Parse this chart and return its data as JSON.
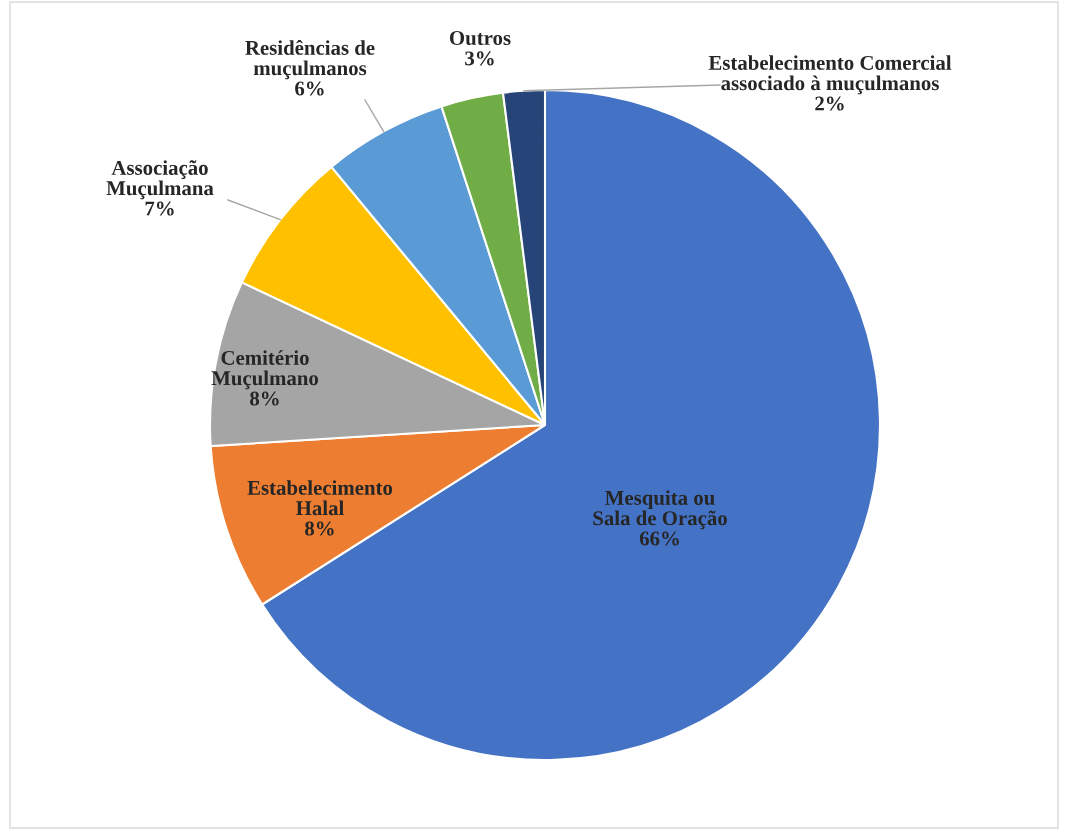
{
  "chart_data": {
    "type": "pie",
    "categories": [
      "Mesquita ou\nSala de Oração",
      "Estabelecimento\nHalal",
      "Cemitério\nMuçulmano",
      "Associação\nMuçulmana",
      "Residências de\nmuçulmanos",
      "Outros",
      "Estabelecimento Comercial\nassociado à muçulmanos"
    ],
    "values": [
      66,
      8,
      8,
      7,
      6,
      3,
      2
    ],
    "colors": [
      "#4472c4",
      "#ed7d31",
      "#a5a5a5",
      "#ffc000",
      "#5b9bd5",
      "#70ad47",
      "#264478"
    ],
    "value_labels": [
      "66%",
      "8%",
      "8%",
      "7%",
      "6%",
      "3%",
      "2%"
    ]
  }
}
